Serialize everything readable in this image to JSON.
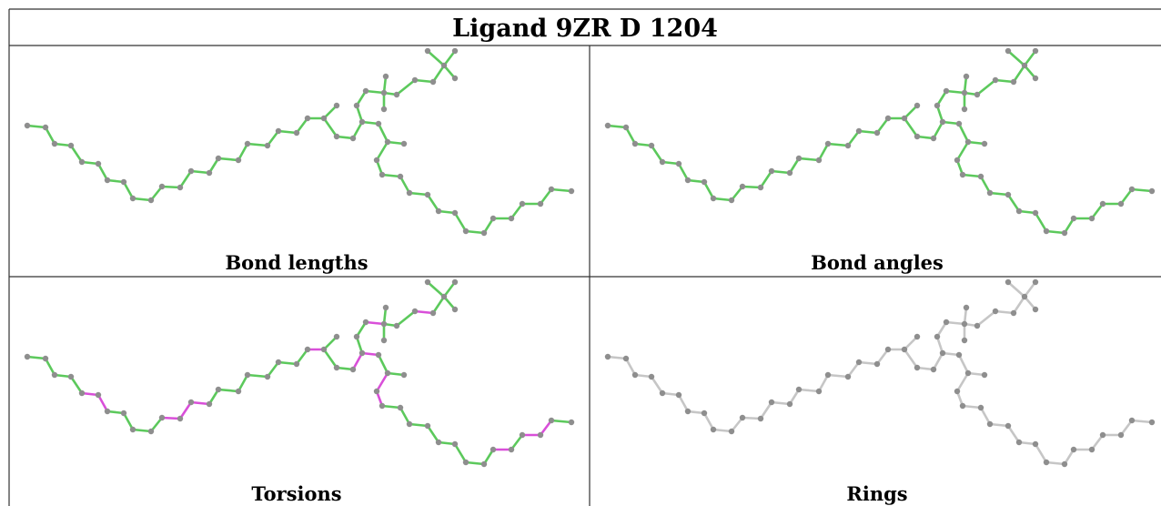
{
  "title": "Ligand 9ZR D 1204",
  "colors": {
    "ok_bond": "#5cc95c",
    "flagged_bond": "#d94fd9",
    "neutral_bond": "#c6c6c6",
    "atom": "#8e8e8e",
    "frame": "#333333"
  },
  "panels": [
    {
      "key": "bond_lengths",
      "caption": "Bond lengths",
      "scheme": "ok"
    },
    {
      "key": "bond_angles",
      "caption": "Bond angles",
      "scheme": "ok"
    },
    {
      "key": "torsions",
      "caption": "Torsions",
      "scheme": "torsion"
    },
    {
      "key": "rings",
      "caption": "Rings",
      "scheme": "neutral"
    }
  ]
}
